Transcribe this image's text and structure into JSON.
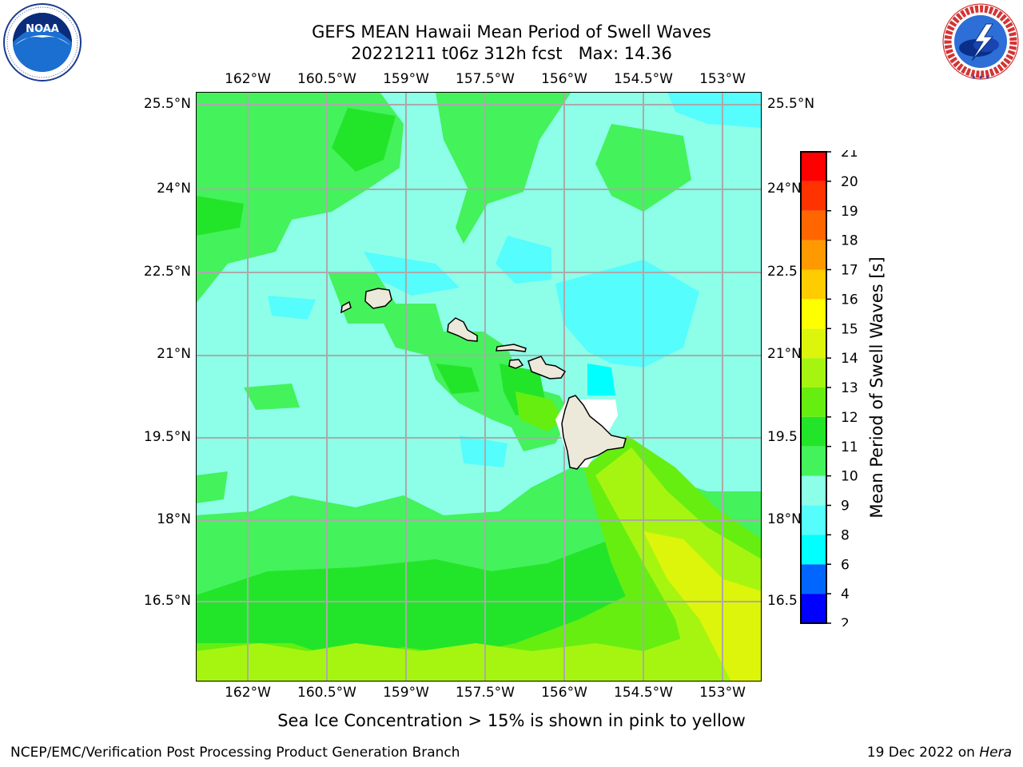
{
  "title": {
    "line1": "GEFS MEAN Hawaii Mean Period of Swell Waves",
    "line2": "20221211 t06z 312h fcst   Max: 14.36"
  },
  "logos": {
    "left": {
      "name": "NOAA",
      "ring_text": "NATIONAL OCEANIC AND ATMOSPHERIC ADMINISTRATION · U.S. DEPARTMENT OF COMMERCE"
    },
    "right": {
      "name": "NATIONAL WEATHER SERVICE"
    }
  },
  "map": {
    "lon_ticks": [
      "162°W",
      "160.5°W",
      "159°W",
      "157.5°W",
      "156°W",
      "154.5°W",
      "153°W"
    ],
    "lat_ticks": [
      "25.5°N",
      "24°N",
      "22.5°N",
      "21°N",
      "19.5°N",
      "18°N",
      "16.5°N"
    ],
    "lat_ticks_right": [
      "25.5°N",
      "24°N",
      "22.5",
      "21°N",
      "19.5",
      "18°N",
      "16.5"
    ],
    "grid": true,
    "colors": {
      "land": "#ede9da",
      "grid": "#aaaaaa",
      "c7_8": "#00ffff",
      "c8_9": "#55fdfd",
      "c9_10": "#8dffe8",
      "c10_11": "#44f25c",
      "c11_12": "#22e52a",
      "c12_13": "#66ee11",
      "c13_14": "#a6f511",
      "c14_15": "#ddf50a"
    }
  },
  "colorbar": {
    "label": "Mean Period of Swell Waves [s]",
    "ticks": [
      "2",
      "4",
      "6",
      "8",
      "9",
      "10",
      "11",
      "12",
      "13",
      "14",
      "15",
      "16",
      "17",
      "18",
      "19",
      "20",
      "21"
    ],
    "colors": [
      "#0000ff",
      "#0066ff",
      "#00ffff",
      "#55fdfd",
      "#8dffe8",
      "#44f25c",
      "#22e52a",
      "#66ee11",
      "#a6f511",
      "#ddf50a",
      "#ffff00",
      "#ffcc00",
      "#ff9900",
      "#ff6600",
      "#ff3300",
      "#ff0000"
    ]
  },
  "caption": "Sea Ice Concentration > 15% is shown in pink to yellow",
  "footer": {
    "left": "NCEP/EMC/Verification Post Processing Product Generation Branch",
    "right_prefix": "19 Dec 2022 on ",
    "right_host": "Hera"
  }
}
